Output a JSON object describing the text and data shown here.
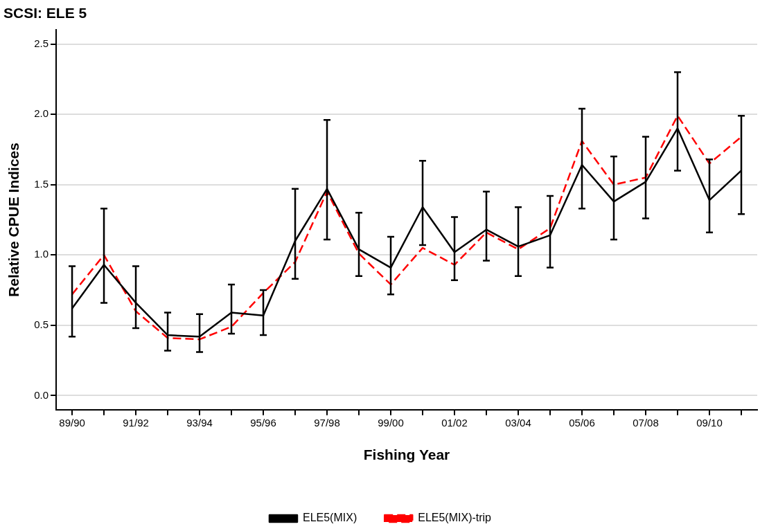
{
  "chart_data": {
    "type": "line",
    "title": "SCSI: ELE 5",
    "xlabel": "Fishing Year",
    "ylabel": "Relative CPUE Indices",
    "categories": [
      "89/90",
      null,
      "91/92",
      null,
      "93/94",
      null,
      "95/96",
      null,
      "97/98",
      null,
      "99/00",
      null,
      "01/02",
      null,
      "03/04",
      null,
      "05/06",
      null,
      "07/08",
      null,
      "09/10",
      null
    ],
    "series": [
      {
        "name": "ELE5(MIX)",
        "color": "#000000",
        "line_style": "solid",
        "values": [
          0.62,
          0.93,
          0.66,
          0.43,
          0.42,
          0.59,
          0.57,
          1.1,
          1.47,
          1.04,
          0.91,
          1.34,
          1.02,
          1.18,
          1.06,
          1.14,
          1.64,
          1.38,
          1.52,
          1.9,
          1.39,
          1.6
        ],
        "errors": [
          [
            0.42,
            0.92
          ],
          [
            0.66,
            1.33
          ],
          [
            0.48,
            0.92
          ],
          [
            0.32,
            0.59
          ],
          [
            0.31,
            0.58
          ],
          [
            0.44,
            0.79
          ],
          [
            0.43,
            0.75
          ],
          [
            0.83,
            1.47
          ],
          [
            1.11,
            1.96
          ],
          [
            0.85,
            1.3
          ],
          [
            0.72,
            1.13
          ],
          [
            1.07,
            1.67
          ],
          [
            0.82,
            1.27
          ],
          [
            0.96,
            1.45
          ],
          [
            0.85,
            1.34
          ],
          [
            0.91,
            1.42
          ],
          [
            1.33,
            2.04
          ],
          [
            1.11,
            1.7
          ],
          [
            1.26,
            1.84
          ],
          [
            1.6,
            2.3
          ],
          [
            1.16,
            1.68
          ],
          [
            1.29,
            1.99
          ]
        ]
      },
      {
        "name": "ELE5(MIX)-trip",
        "color": "#ff0000",
        "line_style": "dashed",
        "values": [
          0.72,
          1.0,
          0.6,
          0.41,
          0.4,
          0.49,
          0.73,
          0.95,
          1.45,
          1.01,
          0.79,
          1.05,
          0.93,
          1.16,
          1.04,
          1.19,
          1.81,
          1.5,
          1.55,
          1.99,
          1.65,
          1.84
        ]
      }
    ],
    "ylim": [
      -0.1,
      2.6
    ],
    "yticks": [
      {
        "value": 0,
        "label": "0.0"
      },
      0.5,
      {
        "value": 1,
        "label": "1.0"
      },
      1.5,
      {
        "value": 2,
        "label": "2.0"
      },
      2.5
    ],
    "grid": "y",
    "legend": "bottom",
    "marker": "none"
  }
}
